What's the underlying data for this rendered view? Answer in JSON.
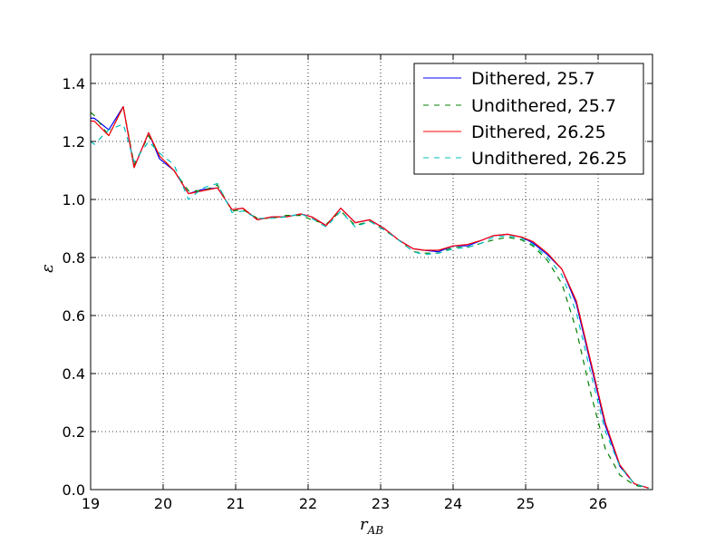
{
  "chart_data": {
    "type": "line",
    "xlabel": "r",
    "xlabel_sub": "AB",
    "ylabel": "ε",
    "xlim": [
      19,
      26.75
    ],
    "ylim": [
      0.0,
      1.5
    ],
    "xticks": [
      19,
      20,
      21,
      22,
      23,
      24,
      25,
      26
    ],
    "yticks": [
      0.0,
      0.2,
      0.4,
      0.6,
      0.8,
      1.0,
      1.2,
      1.4
    ],
    "grid": true,
    "legend_position": "top-right",
    "series": [
      {
        "name": "Dithered, 25.7",
        "color": "#0000ff",
        "dash": "solid",
        "x": [
          19.0,
          19.05,
          19.25,
          19.45,
          19.6,
          19.8,
          19.95,
          20.15,
          20.35,
          20.55,
          20.75,
          20.95,
          21.1,
          21.3,
          21.5,
          21.7,
          21.9,
          22.05,
          22.25,
          22.45,
          22.65,
          22.85,
          23.05,
          23.25,
          23.45,
          23.6,
          23.8,
          24.0,
          24.2,
          24.4,
          24.55,
          24.75,
          24.95,
          25.1,
          25.3,
          25.5,
          25.7,
          25.9,
          26.1,
          26.3,
          26.5,
          26.7
        ],
        "y": [
          1.28,
          1.28,
          1.24,
          1.32,
          1.11,
          1.23,
          1.14,
          1.1,
          1.02,
          1.035,
          1.04,
          0.965,
          0.97,
          0.93,
          0.94,
          0.94,
          0.95,
          0.94,
          0.91,
          0.97,
          0.92,
          0.93,
          0.9,
          0.86,
          0.83,
          0.825,
          0.82,
          0.84,
          0.84,
          0.86,
          0.875,
          0.88,
          0.87,
          0.85,
          0.81,
          0.76,
          0.64,
          0.43,
          0.22,
          0.08,
          0.02,
          0.005
        ]
      },
      {
        "name": "Undithered, 25.7",
        "color": "#008000",
        "dash": "dashed",
        "x": [
          19.0,
          19.05,
          19.25,
          19.45,
          19.6,
          19.8,
          19.95,
          20.15,
          20.35,
          20.55,
          20.75,
          20.95,
          21.1,
          21.3,
          21.5,
          21.7,
          21.9,
          22.05,
          22.25,
          22.45,
          22.65,
          22.85,
          23.05,
          23.25,
          23.45,
          23.6,
          23.8,
          24.0,
          24.2,
          24.4,
          24.55,
          24.75,
          24.95,
          25.1,
          25.3,
          25.5,
          25.7,
          25.9,
          26.1,
          26.3,
          26.5,
          26.7
        ],
        "y": [
          1.3,
          1.29,
          1.22,
          1.32,
          1.12,
          1.22,
          1.15,
          1.1,
          1.03,
          1.03,
          1.05,
          0.96,
          0.965,
          0.935,
          0.935,
          0.945,
          0.945,
          0.93,
          0.915,
          0.96,
          0.91,
          0.925,
          0.895,
          0.86,
          0.82,
          0.815,
          0.815,
          0.835,
          0.835,
          0.85,
          0.86,
          0.87,
          0.86,
          0.84,
          0.79,
          0.71,
          0.55,
          0.33,
          0.14,
          0.05,
          0.015,
          0.005
        ]
      },
      {
        "name": "Dithered, 26.25",
        "color": "#ff0000",
        "dash": "solid",
        "x": [
          19.0,
          19.05,
          19.25,
          19.45,
          19.6,
          19.8,
          19.95,
          20.15,
          20.35,
          20.55,
          20.75,
          20.95,
          21.1,
          21.3,
          21.5,
          21.7,
          21.9,
          22.05,
          22.25,
          22.45,
          22.65,
          22.85,
          23.05,
          23.25,
          23.45,
          23.6,
          23.8,
          24.0,
          24.2,
          24.4,
          24.55,
          24.75,
          24.95,
          25.1,
          25.3,
          25.5,
          25.7,
          25.9,
          26.1,
          26.3,
          26.5,
          26.7
        ],
        "y": [
          1.27,
          1.27,
          1.22,
          1.32,
          1.11,
          1.23,
          1.15,
          1.1,
          1.02,
          1.03,
          1.04,
          0.965,
          0.97,
          0.93,
          0.94,
          0.94,
          0.95,
          0.94,
          0.91,
          0.97,
          0.92,
          0.93,
          0.9,
          0.86,
          0.83,
          0.825,
          0.825,
          0.84,
          0.845,
          0.86,
          0.875,
          0.88,
          0.87,
          0.855,
          0.815,
          0.76,
          0.65,
          0.44,
          0.23,
          0.085,
          0.02,
          0.005
        ]
      },
      {
        "name": "Undithered, 26.25",
        "color": "#00bfbf",
        "dash": "dashed",
        "x": [
          19.0,
          19.05,
          19.25,
          19.45,
          19.6,
          19.8,
          19.95,
          20.15,
          20.35,
          20.55,
          20.75,
          20.95,
          21.1,
          21.3,
          21.5,
          21.7,
          21.9,
          22.05,
          22.25,
          22.45,
          22.65,
          22.85,
          23.05,
          23.25,
          23.45,
          23.6,
          23.8,
          24.0,
          24.2,
          24.4,
          24.55,
          24.75,
          24.95,
          25.1,
          25.3,
          25.5,
          25.7,
          25.9,
          26.1,
          26.3,
          26.5,
          26.7
        ],
        "y": [
          1.2,
          1.19,
          1.24,
          1.26,
          1.13,
          1.2,
          1.16,
          1.12,
          1.0,
          1.04,
          1.055,
          0.955,
          0.96,
          0.935,
          0.935,
          0.94,
          0.95,
          0.935,
          0.905,
          0.96,
          0.905,
          0.925,
          0.895,
          0.86,
          0.82,
          0.81,
          0.815,
          0.83,
          0.835,
          0.85,
          0.87,
          0.875,
          0.865,
          0.845,
          0.8,
          0.74,
          0.61,
          0.4,
          0.2,
          0.08,
          0.02,
          0.005
        ]
      }
    ]
  }
}
